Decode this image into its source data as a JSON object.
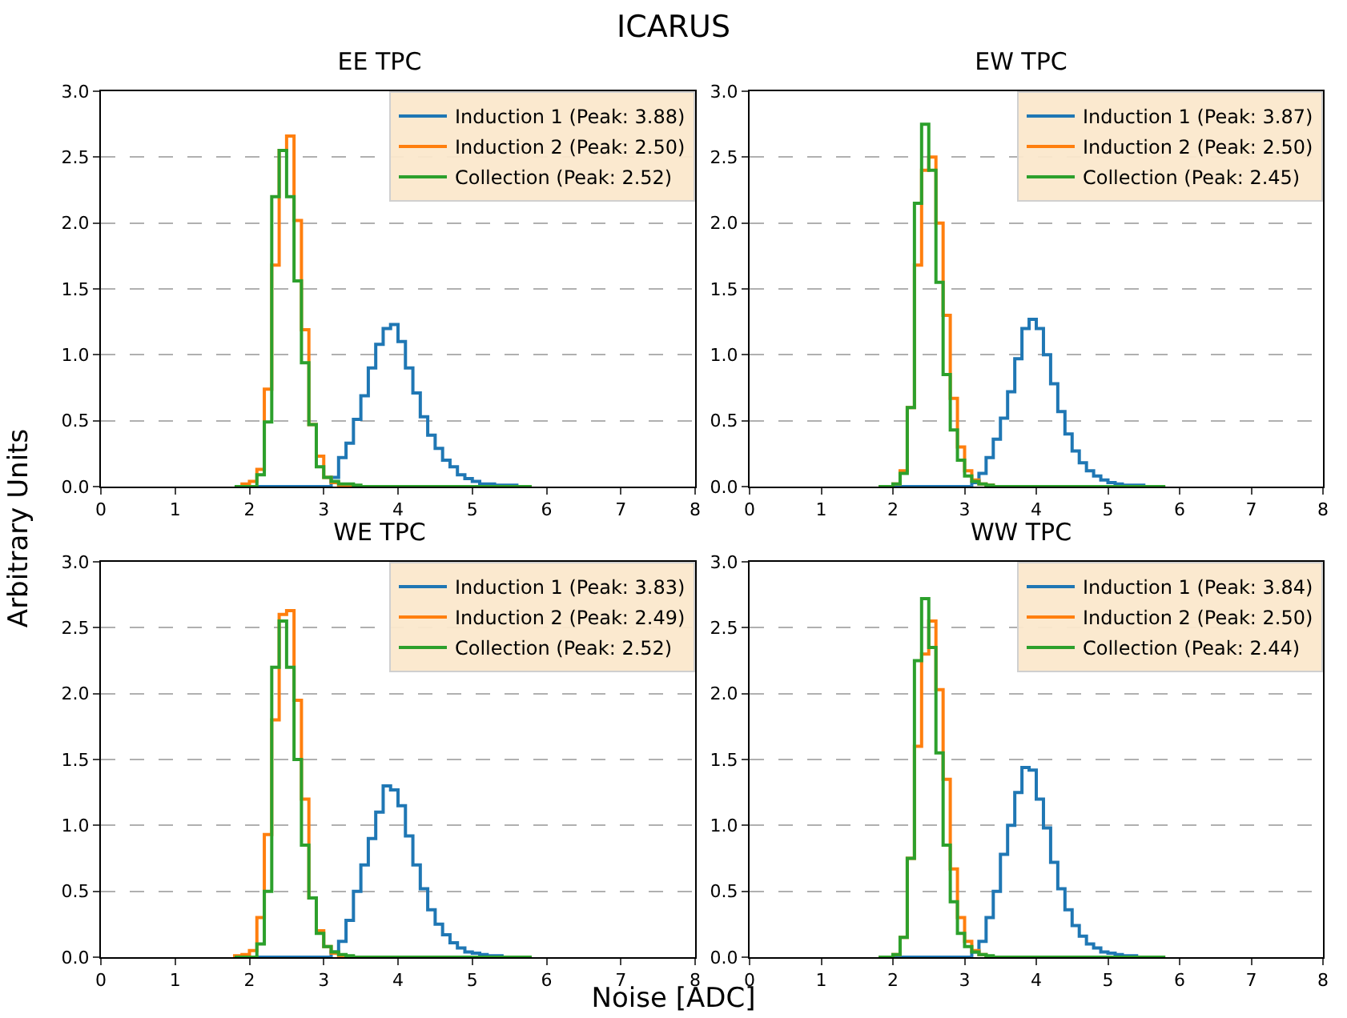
{
  "chart_data": [
    {
      "type": "histogram",
      "title": "EE TPC",
      "annotations": [
        "ICARUS"
      ],
      "ylabel": "Arbitrary Units",
      "bins": [
        1.8,
        1.9,
        2.0,
        2.1,
        2.2,
        2.3,
        2.4,
        2.5,
        2.6,
        2.7,
        2.8,
        2.9,
        3.0,
        3.1,
        3.2,
        3.3,
        3.4,
        3.5,
        3.6,
        3.7,
        3.8,
        3.9,
        4.0,
        4.1,
        4.2,
        4.3,
        4.4,
        4.5,
        4.6,
        4.7,
        4.8,
        4.9,
        5.0,
        5.1,
        5.2,
        5.3,
        5.4,
        5.5,
        5.6,
        5.7,
        5.8
      ],
      "xlim": [
        0,
        8
      ],
      "ylim": [
        0,
        3
      ],
      "xticks": [
        0,
        1,
        2,
        3,
        4,
        5,
        6,
        7,
        8
      ],
      "yticks": [
        {
          "value": 0,
          "label": "0.0"
        },
        {
          "value": 0.5,
          "label": "0.5"
        },
        {
          "value": 1,
          "label": "1.0"
        },
        {
          "value": 1.5,
          "label": "1.5"
        },
        {
          "value": 2,
          "label": "2.0"
        },
        {
          "value": 2.5,
          "label": "2.5"
        },
        {
          "value": 3,
          "label": "3.0"
        }
      ],
      "grid": "y",
      "legend": "top right",
      "series": [
        {
          "name": "Induction 1 (Peak: 3.88)",
          "color": "#1f77b4",
          "values": [
            0,
            0,
            0,
            0,
            0,
            0,
            0,
            0,
            0,
            0,
            0,
            0,
            0,
            0.07,
            0.22,
            0.33,
            0.51,
            0.69,
            0.9,
            1.08,
            1.2,
            1.23,
            1.1,
            0.9,
            0.71,
            0.53,
            0.39,
            0.29,
            0.2,
            0.15,
            0.09,
            0.06,
            0.04,
            0.02,
            0.02,
            0.01,
            0.01,
            0.01,
            0,
            0
          ]
        },
        {
          "name": "Induction 2 (Peak: 2.50)",
          "color": "#ff7f0e",
          "values": [
            0,
            0.02,
            0.04,
            0.13,
            0.74,
            1.68,
            2.55,
            2.66,
            2.02,
            1.19,
            0.47,
            0.23,
            0.07,
            0.03,
            0.01,
            0,
            0,
            0,
            0,
            0,
            0,
            0,
            0,
            0,
            0,
            0,
            0,
            0,
            0,
            0,
            0,
            0,
            0,
            0,
            0,
            0,
            0,
            0,
            0,
            0
          ]
        },
        {
          "name": "Collection (Peak: 2.52)",
          "color": "#2ca02c",
          "values": [
            0,
            0,
            0,
            0.09,
            0.49,
            2.2,
            2.55,
            2.2,
            1.56,
            0.94,
            0.47,
            0.15,
            0.07,
            0.04,
            0.02,
            0.02,
            0.01,
            0,
            0,
            0,
            0,
            0,
            0,
            0,
            0,
            0,
            0,
            0,
            0,
            0,
            0,
            0,
            0,
            0,
            0,
            0,
            0,
            0,
            0,
            0
          ]
        }
      ]
    },
    {
      "type": "histogram",
      "title": "EW TPC",
      "bins": [
        1.8,
        1.9,
        2.0,
        2.1,
        2.2,
        2.3,
        2.4,
        2.5,
        2.6,
        2.7,
        2.8,
        2.9,
        3.0,
        3.1,
        3.2,
        3.3,
        3.4,
        3.5,
        3.6,
        3.7,
        3.8,
        3.9,
        4.0,
        4.1,
        4.2,
        4.3,
        4.4,
        4.5,
        4.6,
        4.7,
        4.8,
        4.9,
        5.0,
        5.1,
        5.2,
        5.3,
        5.4,
        5.5,
        5.6,
        5.7,
        5.8
      ],
      "xlim": [
        0,
        8
      ],
      "ylim": [
        0,
        3
      ],
      "xticks": [
        0,
        1,
        2,
        3,
        4,
        5,
        6,
        7,
        8
      ],
      "yticks": [
        {
          "value": 0,
          "label": "0.0"
        },
        {
          "value": 0.5,
          "label": "0.5"
        },
        {
          "value": 1,
          "label": "1.0"
        },
        {
          "value": 1.5,
          "label": "1.5"
        },
        {
          "value": 2,
          "label": "2.0"
        },
        {
          "value": 2.5,
          "label": "2.5"
        },
        {
          "value": 3,
          "label": "3.0"
        }
      ],
      "grid": "y",
      "legend": "top right",
      "series": [
        {
          "name": "Induction 1 (Peak: 3.87)",
          "color": "#1f77b4",
          "values": [
            0,
            0,
            0,
            0,
            0,
            0,
            0,
            0,
            0,
            0,
            0,
            0,
            0,
            0.03,
            0.1,
            0.22,
            0.36,
            0.52,
            0.72,
            0.97,
            1.2,
            1.27,
            1.2,
            1.0,
            0.78,
            0.57,
            0.4,
            0.27,
            0.18,
            0.12,
            0.08,
            0.05,
            0.03,
            0.02,
            0.01,
            0.01,
            0.01,
            0,
            0,
            0
          ]
        },
        {
          "name": "Induction 2 (Peak: 2.50)",
          "color": "#ff7f0e",
          "values": [
            0,
            0,
            0.02,
            0.12,
            0.6,
            1.68,
            2.4,
            2.5,
            2.0,
            1.3,
            0.67,
            0.3,
            0.12,
            0.05,
            0.02,
            0.01,
            0,
            0,
            0,
            0,
            0,
            0,
            0,
            0,
            0,
            0,
            0,
            0,
            0,
            0,
            0,
            0,
            0,
            0,
            0,
            0,
            0,
            0,
            0,
            0
          ]
        },
        {
          "name": "Collection (Peak: 2.45)",
          "color": "#2ca02c",
          "values": [
            0,
            0,
            0.02,
            0.1,
            0.6,
            2.15,
            2.75,
            2.4,
            1.55,
            0.85,
            0.43,
            0.2,
            0.08,
            0.04,
            0.02,
            0.01,
            0,
            0,
            0,
            0,
            0,
            0,
            0,
            0,
            0,
            0,
            0,
            0,
            0,
            0,
            0,
            0,
            0,
            0,
            0,
            0,
            0,
            0,
            0,
            0
          ]
        }
      ]
    },
    {
      "type": "histogram",
      "title": "WE TPC",
      "xlabel": "Noise [ADC]",
      "bins": [
        1.8,
        1.9,
        2.0,
        2.1,
        2.2,
        2.3,
        2.4,
        2.5,
        2.6,
        2.7,
        2.8,
        2.9,
        3.0,
        3.1,
        3.2,
        3.3,
        3.4,
        3.5,
        3.6,
        3.7,
        3.8,
        3.9,
        4.0,
        4.1,
        4.2,
        4.3,
        4.4,
        4.5,
        4.6,
        4.7,
        4.8,
        4.9,
        5.0,
        5.1,
        5.2,
        5.3,
        5.4,
        5.5,
        5.6,
        5.7,
        5.8
      ],
      "xlim": [
        0,
        8
      ],
      "ylim": [
        0,
        3
      ],
      "xticks": [
        0,
        1,
        2,
        3,
        4,
        5,
        6,
        7,
        8
      ],
      "yticks": [
        {
          "value": 0,
          "label": "0.0"
        },
        {
          "value": 0.5,
          "label": "0.5"
        },
        {
          "value": 1,
          "label": "1.0"
        },
        {
          "value": 1.5,
          "label": "1.5"
        },
        {
          "value": 2,
          "label": "2.0"
        },
        {
          "value": 2.5,
          "label": "2.5"
        },
        {
          "value": 3,
          "label": "3.0"
        }
      ],
      "grid": "y",
      "legend": "top right",
      "series": [
        {
          "name": "Induction 1 (Peak: 3.83)",
          "color": "#1f77b4",
          "values": [
            0,
            0,
            0,
            0,
            0,
            0,
            0,
            0,
            0,
            0,
            0,
            0,
            0,
            0.04,
            0.12,
            0.28,
            0.5,
            0.7,
            0.9,
            1.1,
            1.3,
            1.27,
            1.15,
            0.92,
            0.7,
            0.52,
            0.36,
            0.25,
            0.17,
            0.11,
            0.07,
            0.04,
            0.03,
            0.02,
            0.01,
            0.01,
            0,
            0,
            0,
            0
          ]
        },
        {
          "name": "Induction 2 (Peak: 2.49)",
          "color": "#ff7f0e",
          "values": [
            0.01,
            0.02,
            0.05,
            0.3,
            0.93,
            1.8,
            2.6,
            2.63,
            1.95,
            1.2,
            0.45,
            0.2,
            0.08,
            0.03,
            0.01,
            0,
            0,
            0,
            0,
            0,
            0,
            0,
            0,
            0,
            0,
            0,
            0,
            0,
            0,
            0,
            0,
            0,
            0,
            0,
            0,
            0,
            0,
            0,
            0,
            0
          ]
        },
        {
          "name": "Collection (Peak: 2.52)",
          "color": "#2ca02c",
          "values": [
            0,
            0,
            0,
            0.1,
            0.5,
            2.2,
            2.55,
            2.2,
            1.5,
            0.85,
            0.45,
            0.18,
            0.08,
            0.04,
            0.02,
            0.01,
            0,
            0,
            0,
            0,
            0,
            0,
            0,
            0,
            0,
            0,
            0,
            0,
            0,
            0,
            0,
            0,
            0,
            0,
            0,
            0,
            0,
            0,
            0,
            0
          ]
        }
      ]
    },
    {
      "type": "histogram",
      "title": "WW TPC",
      "bins": [
        1.8,
        1.9,
        2.0,
        2.1,
        2.2,
        2.3,
        2.4,
        2.5,
        2.6,
        2.7,
        2.8,
        2.9,
        3.0,
        3.1,
        3.2,
        3.3,
        3.4,
        3.5,
        3.6,
        3.7,
        3.8,
        3.9,
        4.0,
        4.1,
        4.2,
        4.3,
        4.4,
        4.5,
        4.6,
        4.7,
        4.8,
        4.9,
        5.0,
        5.1,
        5.2,
        5.3,
        5.4,
        5.5,
        5.6,
        5.7,
        5.8
      ],
      "xlim": [
        0,
        8
      ],
      "ylim": [
        0,
        3
      ],
      "xticks": [
        0,
        1,
        2,
        3,
        4,
        5,
        6,
        7,
        8
      ],
      "yticks": [
        {
          "value": 0,
          "label": "0.0"
        },
        {
          "value": 0.5,
          "label": "0.5"
        },
        {
          "value": 1,
          "label": "1.0"
        },
        {
          "value": 1.5,
          "label": "1.5"
        },
        {
          "value": 2,
          "label": "2.0"
        },
        {
          "value": 2.5,
          "label": "2.5"
        },
        {
          "value": 3,
          "label": "3.0"
        }
      ],
      "grid": "y",
      "legend": "top right",
      "series": [
        {
          "name": "Induction 1 (Peak: 3.84)",
          "color": "#1f77b4",
          "values": [
            0,
            0,
            0,
            0,
            0,
            0,
            0,
            0,
            0,
            0,
            0,
            0,
            0,
            0.04,
            0.12,
            0.3,
            0.5,
            0.78,
            1.0,
            1.25,
            1.44,
            1.42,
            1.2,
            0.98,
            0.72,
            0.52,
            0.36,
            0.24,
            0.16,
            0.1,
            0.07,
            0.04,
            0.03,
            0.02,
            0.01,
            0.01,
            0,
            0,
            0,
            0
          ]
        },
        {
          "name": "Induction 2 (Peak: 2.50)",
          "color": "#ff7f0e",
          "values": [
            0,
            0,
            0.02,
            0.15,
            0.75,
            1.6,
            2.3,
            2.55,
            2.03,
            1.35,
            0.67,
            0.3,
            0.12,
            0.05,
            0.02,
            0,
            0,
            0,
            0,
            0,
            0,
            0,
            0,
            0,
            0,
            0,
            0,
            0,
            0,
            0,
            0,
            0,
            0,
            0,
            0,
            0,
            0,
            0,
            0,
            0
          ]
        },
        {
          "name": "Collection (Peak: 2.44)",
          "color": "#2ca02c",
          "values": [
            0,
            0,
            0.02,
            0.15,
            0.75,
            2.25,
            2.72,
            2.35,
            1.55,
            0.85,
            0.42,
            0.18,
            0.08,
            0.04,
            0.02,
            0.01,
            0,
            0,
            0,
            0,
            0,
            0,
            0,
            0,
            0,
            0,
            0,
            0,
            0,
            0,
            0,
            0,
            0,
            0,
            0,
            0,
            0,
            0,
            0,
            0
          ]
        }
      ]
    }
  ]
}
